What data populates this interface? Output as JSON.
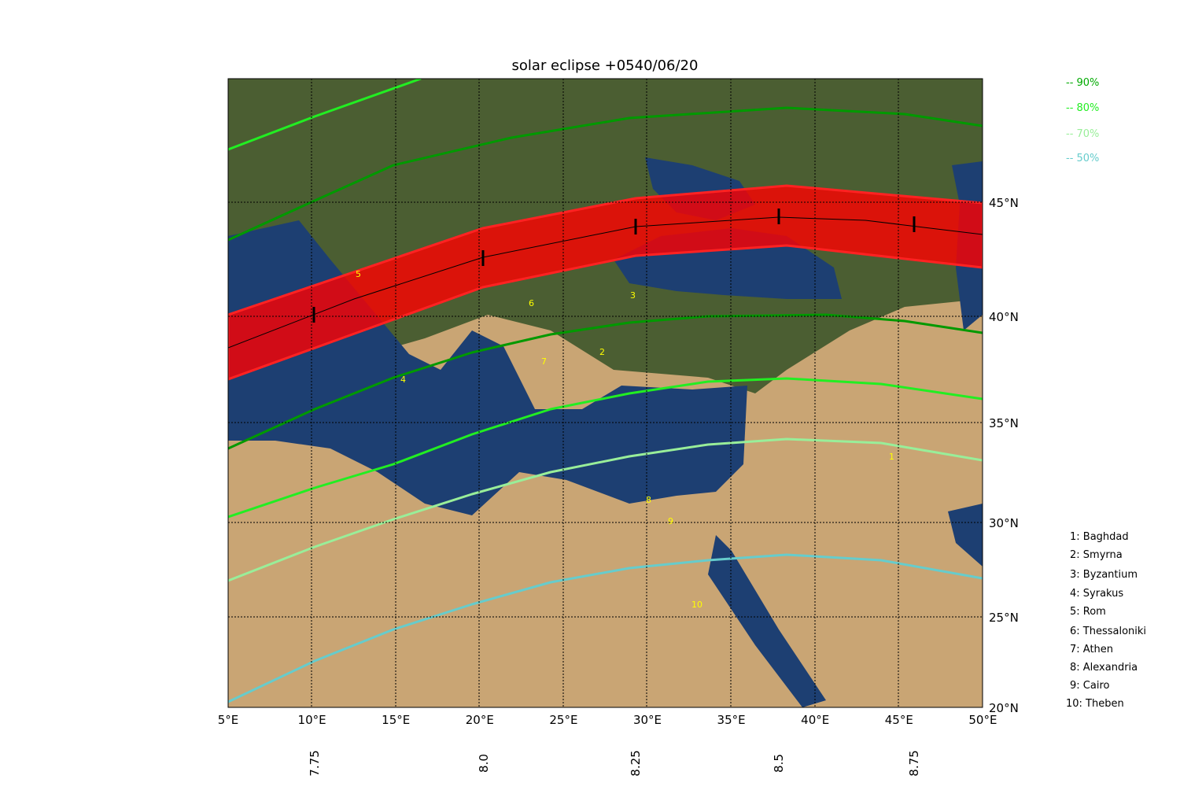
{
  "title": "solar eclipse +0540/06/20",
  "x_axis": {
    "labels": [
      "5°E",
      "10°E",
      "15°E",
      "20°E",
      "25°E",
      "30°E",
      "35°E",
      "40°E",
      "45°E",
      "50°E"
    ]
  },
  "y_axis": {
    "labels": [
      "45°N",
      "40°N",
      "35°N",
      "30°N",
      "25°N",
      "20°N"
    ]
  },
  "time_axis": {
    "labels": [
      "7.75",
      "8.0",
      "8.25",
      "8.5",
      "8.75"
    ]
  },
  "legend": [
    "-- 90%",
    "-- 80%",
    "-- 70%",
    "-- 50%"
  ],
  "cities": [
    "1: Baghdad",
    "2: Smyrna",
    "3: Byzantium",
    "4: Syrakus",
    "5: Rom",
    "6: Thessaloniki",
    "7: Athen",
    "8: Alexandria",
    "9: Cairo",
    "10: Theben"
  ],
  "map_markers": [
    "1",
    "2",
    "3",
    "4",
    "5",
    "6",
    "7",
    "8",
    "9",
    "10"
  ]
}
